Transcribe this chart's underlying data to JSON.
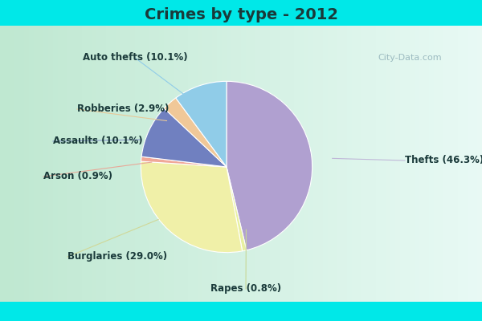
{
  "title": "Crimes by type - 2012",
  "title_fontsize": 14,
  "title_fontweight": "bold",
  "title_color": "#1a3a3a",
  "labels": [
    "Thefts",
    "Rapes",
    "Burglaries",
    "Arson",
    "Assaults",
    "Robberies",
    "Auto thefts"
  ],
  "values": [
    46.3,
    0.8,
    29.0,
    0.9,
    10.1,
    2.9,
    10.1
  ],
  "colors": [
    "#b0a0d0",
    "#e8f0a0",
    "#f0f0a8",
    "#f0a898",
    "#7080c0",
    "#f0c898",
    "#90cce8"
  ],
  "label_texts": [
    "Thefts (46.3%)",
    "Rapes (0.8%)",
    "Burglaries (29.0%)",
    "Arson (0.9%)",
    "Assaults (10.1%)",
    "Robberies (2.9%)",
    "Auto thefts (10.1%)"
  ],
  "cyan_color": "#00e8e8",
  "bg_green": "#c0e8d8",
  "bg_white": "#e8f4f0",
  "watermark": "City-Data.com",
  "figsize": [
    6.0,
    4.0
  ],
  "dpi": 100,
  "label_fontsize": 8.5,
  "label_color": "#1a3a3a"
}
